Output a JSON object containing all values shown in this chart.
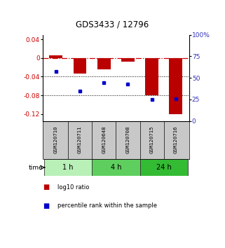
{
  "title": "GDS3433 / 12796",
  "samples": [
    "GSM120710",
    "GSM120711",
    "GSM120648",
    "GSM120708",
    "GSM120715",
    "GSM120716"
  ],
  "log10_ratio": [
    0.005,
    -0.033,
    -0.025,
    -0.008,
    -0.08,
    -0.12
  ],
  "percentile_rank": [
    57,
    35,
    44,
    43,
    25,
    26
  ],
  "groups": [
    {
      "label": "1 h",
      "indices": [
        0,
        1
      ],
      "color": "#b8f0b8"
    },
    {
      "label": "4 h",
      "indices": [
        2,
        3
      ],
      "color": "#5ecf5e"
    },
    {
      "label": "24 h",
      "indices": [
        4,
        5
      ],
      "color": "#33bb33"
    }
  ],
  "ylim_left": [
    -0.135,
    0.05
  ],
  "ylim_right": [
    0,
    100
  ],
  "yticks_left": [
    0.04,
    0,
    -0.04,
    -0.08,
    -0.12
  ],
  "yticks_right": [
    100,
    75,
    50,
    25,
    0
  ],
  "bar_color": "#bb0000",
  "point_color": "#0000cc",
  "hline_color": "#cc0000",
  "hline_y": 0,
  "dotted_lines": [
    -0.04,
    -0.08
  ],
  "legend_items": [
    {
      "label": "log10 ratio",
      "color": "#bb0000"
    },
    {
      "label": "percentile rank within the sample",
      "color": "#0000cc"
    }
  ],
  "sample_box_color": "#c8c8c8",
  "right_tick_labels": [
    "100%",
    "75",
    "50",
    "25",
    "0"
  ]
}
